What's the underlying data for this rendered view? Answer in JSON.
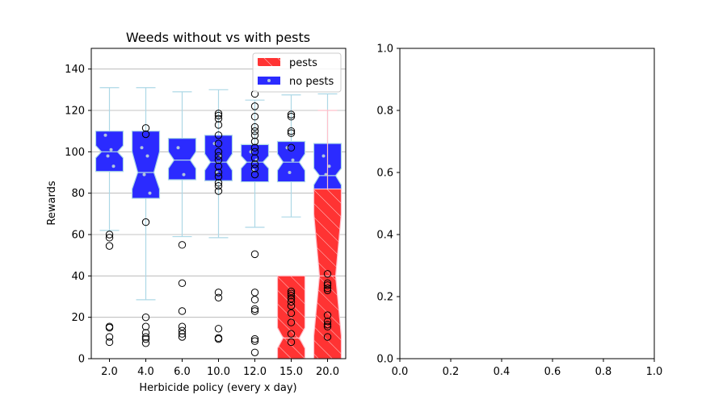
{
  "chart_data": [
    {
      "type": "box",
      "title": "Weeds without vs with pests",
      "xlabel": "Herbicide policy (every x day)",
      "ylabel": "Rewards",
      "ylim": [
        0,
        150
      ],
      "yticks": [
        0,
        20,
        40,
        60,
        80,
        100,
        120,
        140
      ],
      "grid": "y",
      "legend_position": "top-right",
      "categories": [
        "2.0",
        "4.0",
        "6.0",
        "10.0",
        "12.0",
        "15.0",
        "20.0"
      ],
      "series": [
        {
          "name": "no pests",
          "color": "#2b2bff",
          "boxes": [
            {
              "q1": 90.5,
              "median": 100,
              "q3": 110,
              "notch_low": 97,
              "notch_high": 103,
              "whisker_low": 62,
              "whisker_high": 131,
              "outliers": [
                60,
                58.5,
                54.5,
                15.5,
                15,
                10.5,
                8
              ],
              "points": [
                108,
                101,
                98,
                93
              ]
            },
            {
              "q1": 77.5,
              "median": 90,
              "q3": 110,
              "notch_low": 82,
              "notch_high": 100,
              "whisker_low": 28.5,
              "whisker_high": 131,
              "outliers": [
                111.5,
                108.5,
                66,
                20,
                15.5,
                12.5,
                10.5,
                9.5,
                7.5
              ],
              "points": [
                102,
                98,
                89,
                80
              ]
            },
            {
              "q1": 86.5,
              "median": 96,
              "q3": 106.5,
              "notch_low": 92,
              "notch_high": 100,
              "whisker_low": 59,
              "whisker_high": 129,
              "outliers": [
                55,
                36.5,
                23,
                15.5,
                13.5,
                12,
                10.5
              ],
              "points": [
                102,
                89
              ]
            },
            {
              "q1": 86,
              "median": 95,
              "q3": 108,
              "notch_low": 91,
              "notch_high": 99,
              "whisker_low": 58.5,
              "whisker_high": 130,
              "outliers": [
                118.5,
                117.5,
                116,
                113,
                108,
                104,
                100,
                98,
                96,
                93,
                90,
                88,
                85,
                83.5,
                81,
                32,
                29.5,
                14.5,
                10,
                9.5
              ],
              "points": [
                104,
                98,
                90
              ]
            },
            {
              "q1": 85.5,
              "median": 95,
              "q3": 103.5,
              "notch_low": 92,
              "notch_high": 98,
              "whisker_low": 63.5,
              "whisker_high": 125,
              "outliers": [
                128,
                122,
                117,
                112,
                110,
                108,
                105,
                102,
                100,
                97,
                94,
                92,
                89,
                50.5,
                32,
                28.5,
                24,
                23,
                9.5,
                8.5,
                3
              ],
              "points": [
                100,
                96,
                91
              ]
            },
            {
              "q1": 85.5,
              "median": 95,
              "q3": 105,
              "notch_low": 91,
              "notch_high": 99,
              "whisker_low": 68.5,
              "whisker_high": 127.5,
              "outliers": [
                118,
                117,
                110,
                109,
                102
              ],
              "points": [
                102,
                96,
                90
              ]
            },
            {
              "q1": 80.5,
              "median": 88.5,
              "q3": 104,
              "notch_low": 84,
              "notch_high": 92,
              "whisker_low": 80,
              "whisker_high": 128,
              "outliers": [],
              "points": [
                98,
                93,
                89
              ]
            }
          ]
        },
        {
          "name": "pests",
          "color": "#ff3333",
          "boxes": [
            null,
            null,
            null,
            null,
            null,
            {
              "q1": 0,
              "median": 10,
              "q3": 40,
              "notch_low": 5,
              "notch_high": 15,
              "whisker_low": 0,
              "whisker_high": 40,
              "outliers": [
                32.5,
                31.5,
                30.5,
                29,
                27.5,
                25.5,
                22,
                17.5,
                12,
                8
              ],
              "points": []
            },
            {
              "q1": 0,
              "median": 40,
              "q3": 82,
              "notch_low": 11,
              "notch_high": 70,
              "whisker_low": 0,
              "whisker_high": 120,
              "outliers": [
                41,
                36.5,
                35.5,
                34,
                33,
                21,
                18,
                16.5,
                15.5,
                10.5
              ],
              "points": []
            }
          ]
        }
      ]
    },
    {
      "type": "empty",
      "xlim": [
        0,
        1
      ],
      "ylim": [
        0,
        1
      ],
      "xticks": [
        "0.0",
        "0.2",
        "0.4",
        "0.6",
        "0.8",
        "1.0"
      ],
      "yticks": [
        "0.0",
        "0.2",
        "0.4",
        "0.6",
        "0.8",
        "1.0"
      ]
    }
  ]
}
